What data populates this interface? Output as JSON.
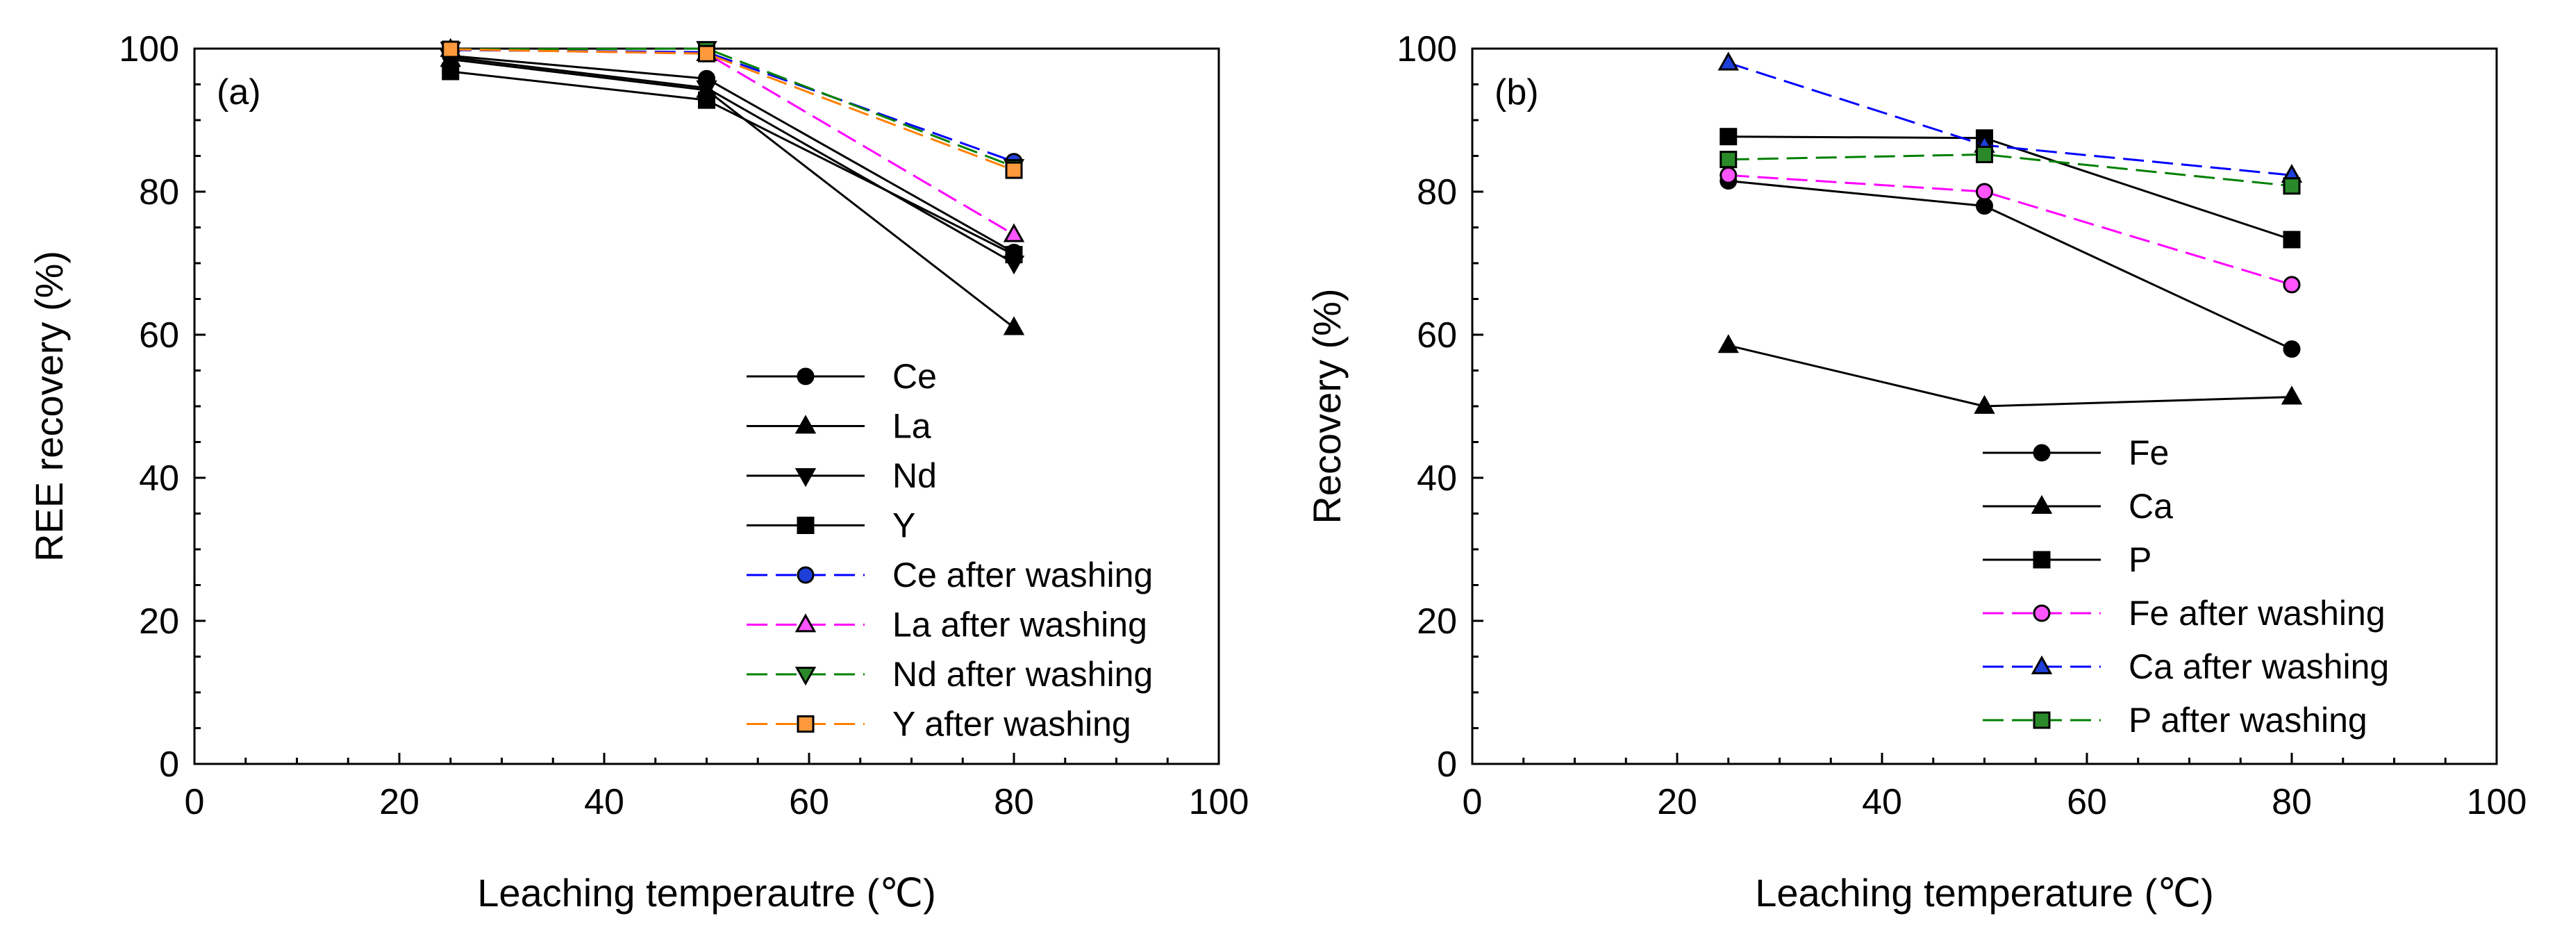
{
  "chart_data": [
    {
      "type": "line",
      "panel_label": "(a)",
      "xlabel": "Leaching temperautre (℃)",
      "ylabel": "REE recovery (%)",
      "xlim": [
        0,
        100
      ],
      "ylim": [
        0,
        100
      ],
      "xticks": [
        "0",
        "20",
        "40",
        "60",
        "80",
        "100"
      ],
      "yticks": [
        "0",
        "20",
        "40",
        "60",
        "80",
        "100"
      ],
      "x": [
        25,
        50,
        80
      ],
      "legend_position": "lower-right",
      "series": [
        {
          "name": "Ce",
          "values": [
            99.0,
            95.8,
            71.5
          ],
          "marker": "circle",
          "color": "#000000",
          "fill": "#000000",
          "dash": false
        },
        {
          "name": "La",
          "values": [
            98.5,
            94.2,
            61.0
          ],
          "marker": "triangle-up",
          "color": "#000000",
          "fill": "#000000",
          "dash": false
        },
        {
          "name": "Nd",
          "values": [
            98.8,
            94.5,
            70.0
          ],
          "marker": "triangle-down",
          "color": "#000000",
          "fill": "#000000",
          "dash": false
        },
        {
          "name": "Y",
          "values": [
            96.8,
            92.8,
            71.2
          ],
          "marker": "square",
          "color": "#000000",
          "fill": "#000000",
          "dash": false
        },
        {
          "name": "Ce after washing",
          "values": [
            99.8,
            99.5,
            84.2
          ],
          "marker": "circle",
          "color": "#0000ff",
          "fill": "#1f3fd9",
          "dash": true
        },
        {
          "name": "La after washing",
          "values": [
            99.9,
            99.3,
            74.0
          ],
          "marker": "triangle-up",
          "color": "#ff00ff",
          "fill": "#ff55ff",
          "dash": true
        },
        {
          "name": "Nd after washing",
          "values": [
            99.9,
            100.0,
            83.5
          ],
          "marker": "triangle-down",
          "color": "#008000",
          "fill": "#2a8a2a",
          "dash": true
        },
        {
          "name": "Y after washing",
          "values": [
            99.9,
            99.3,
            83.0
          ],
          "marker": "square",
          "color": "#ff8000",
          "fill": "#ff9a3c",
          "dash": true
        }
      ]
    },
    {
      "type": "line",
      "panel_label": "(b)",
      "xlabel": "Leaching temperature (℃)",
      "ylabel": "Recovery (%)",
      "xlim": [
        0,
        100
      ],
      "ylim": [
        0,
        100
      ],
      "xticks": [
        "0",
        "20",
        "40",
        "60",
        "80",
        "100"
      ],
      "yticks": [
        "0",
        "20",
        "40",
        "60",
        "80",
        "100"
      ],
      "x": [
        25,
        50,
        80
      ],
      "legend_position": "lower-right",
      "series": [
        {
          "name": "Fe",
          "values": [
            81.5,
            78.0,
            58.0
          ],
          "marker": "circle",
          "color": "#000000",
          "fill": "#000000",
          "dash": false
        },
        {
          "name": "Ca",
          "values": [
            58.5,
            50.0,
            51.3
          ],
          "marker": "triangle-up",
          "color": "#000000",
          "fill": "#000000",
          "dash": false
        },
        {
          "name": "P",
          "values": [
            87.7,
            87.5,
            73.3
          ],
          "marker": "square",
          "color": "#000000",
          "fill": "#000000",
          "dash": false
        },
        {
          "name": "Fe after washing",
          "values": [
            82.3,
            80.0,
            67.0
          ],
          "marker": "circle",
          "color": "#ff00ff",
          "fill": "#ff55ff",
          "dash": true
        },
        {
          "name": "Ca after washing",
          "values": [
            98.0,
            86.5,
            82.3
          ],
          "marker": "triangle-up",
          "color": "#0000ff",
          "fill": "#1f3fd9",
          "dash": true
        },
        {
          "name": "P after washing",
          "values": [
            84.5,
            85.2,
            80.8
          ],
          "marker": "square",
          "color": "#008000",
          "fill": "#2a8a2a",
          "dash": true
        }
      ]
    }
  ]
}
